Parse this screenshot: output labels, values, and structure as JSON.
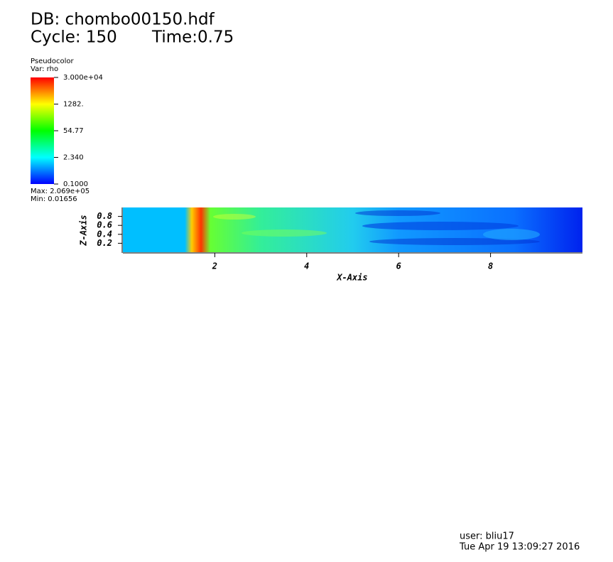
{
  "chart_data": {
    "type": "pseudocolor",
    "db": "DB: chombo00150.hdf",
    "cycle": "Cycle: 150",
    "time": "Time:0.75",
    "xlabel": "X-Axis",
    "ylabel": "Z-Axis",
    "xlim": [
      0,
      10
    ],
    "xticks": [
      2,
      4,
      6,
      8
    ],
    "ylim": [
      0,
      1
    ],
    "yticks": [
      0.2,
      0.4,
      0.6,
      0.8
    ],
    "colorbar": {
      "title": "Pseudocolor",
      "var": "Var: rho",
      "scale": "log",
      "clim": [
        0.1,
        30000
      ],
      "ticks": [
        {
          "value": 30000,
          "label": "3.000e+04"
        },
        {
          "value": 1282,
          "label": "1282."
        },
        54.77,
        {
          "value": 2.34,
          "label": "2.340"
        },
        {
          "value": 0.1,
          "label": "0.1000"
        }
      ],
      "max_label": "Max: 2.069e+05",
      "min_label": "Min: 0.01656"
    },
    "user": "user: bliu17",
    "date": "Tue Apr 19 13:09:27 2016"
  }
}
